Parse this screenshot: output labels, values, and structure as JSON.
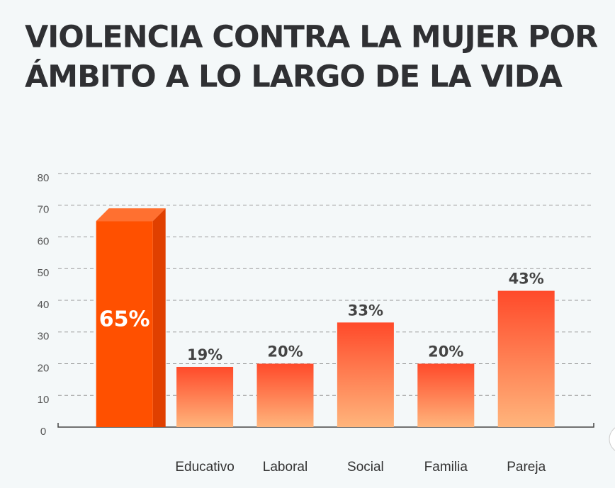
{
  "chart_data": {
    "type": "bar",
    "title": [
      "VIOLENCIA CONTRA LA MUJER POR",
      "ÁMBITO A LO LARGO DE LA VIDA"
    ],
    "categories": [
      null,
      "Educativo",
      "Laboral",
      "Social",
      "Familia",
      "Pareja"
    ],
    "values": [
      65,
      19,
      20,
      33,
      20,
      43
    ],
    "value_labels": [
      "65%",
      "19%",
      "20%",
      "33%",
      "20%",
      "43%"
    ],
    "highlight": 0,
    "highlight_color": "#ff5000",
    "gradient": [
      "#ff4a2a",
      "#ffb57c"
    ],
    "ylim": [
      0,
      80
    ],
    "yticks": [
      0,
      10,
      20,
      30,
      40,
      50,
      60,
      70,
      80
    ],
    "grid": true
  }
}
